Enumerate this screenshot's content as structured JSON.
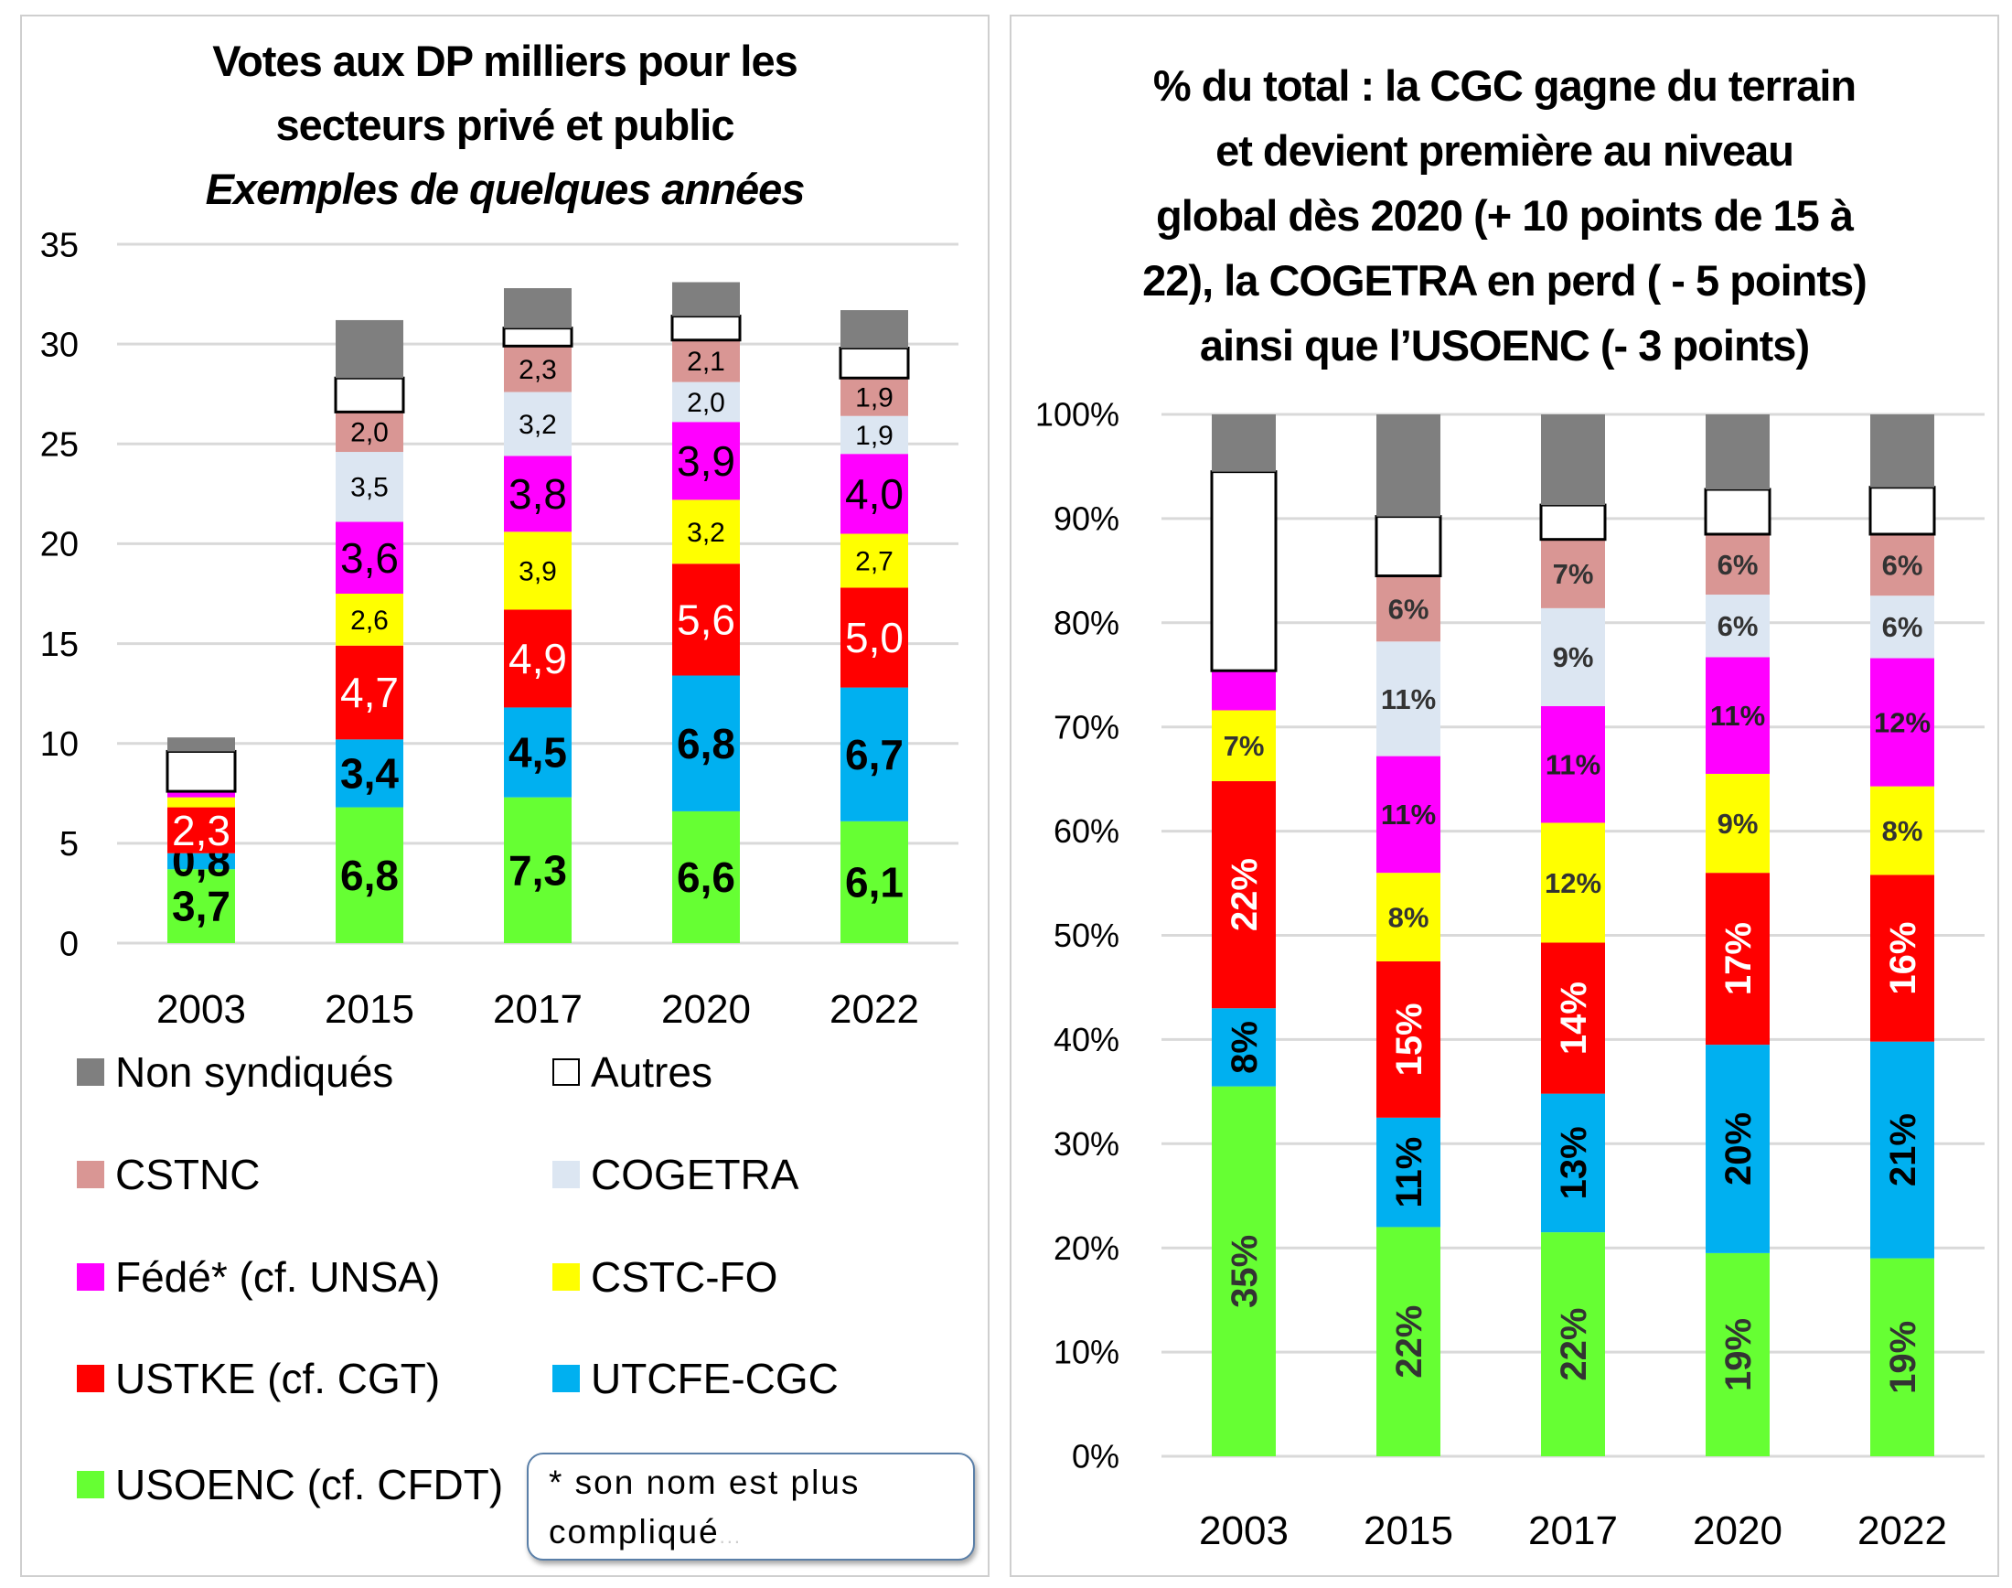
{
  "chart_data": [
    {
      "id": "left",
      "type": "bar",
      "stacked": true,
      "title": "Votes aux DP  milliers pour les secteurs privé et public",
      "subtitle": "Exemples de quelques années",
      "title_lines": [
        "Votes aux DP  milliers pour les",
        "secteurs privé et public"
      ],
      "xlabel": "",
      "ylabel": "",
      "ylim": [
        0,
        35
      ],
      "yticks": [
        0,
        5,
        10,
        15,
        20,
        25,
        30,
        35
      ],
      "ytick_labels": [
        "0",
        "5",
        "10",
        "15",
        "20",
        "25",
        "30",
        "35"
      ],
      "grid": true,
      "categories": [
        "2003",
        "2015",
        "2017",
        "2020",
        "2022"
      ],
      "series": [
        {
          "name": "USOENC (cf. CFDT)",
          "color": "#66ff33",
          "values": [
            3.7,
            6.8,
            7.3,
            6.6,
            6.1
          ],
          "labels": [
            "3,7",
            "6,8",
            "7,3",
            "6,6",
            "6,1"
          ],
          "label_color": "#000000",
          "label_bold": true
        },
        {
          "name": "UTCFE-CGC",
          "color": "#00b0f0",
          "values": [
            0.8,
            3.4,
            4.5,
            6.8,
            6.7
          ],
          "labels": [
            "0,8",
            "3,4",
            "4,5",
            "6,8",
            "6,7"
          ],
          "label_color": "#000000",
          "label_bold": true
        },
        {
          "name": "USTKE (cf. CGT)",
          "color": "#ff0000",
          "values": [
            2.3,
            4.7,
            4.9,
            5.6,
            5.0
          ],
          "labels": [
            "2,3",
            "4,7",
            "4,9",
            "5,6",
            "5,0"
          ],
          "label_color": "#ffffff",
          "label_bold": false
        },
        {
          "name": "CSTC-FO",
          "color": "#ffff00",
          "values": [
            0.5,
            2.6,
            3.9,
            3.2,
            2.7
          ],
          "labels": [
            "",
            "2,6",
            "3,9",
            "3,2",
            "2,7"
          ],
          "label_color": "#000000",
          "label_bold": false
        },
        {
          "name": "Fédé* (cf. UNSA)",
          "color": "#ff00ff",
          "values": [
            0.3,
            3.6,
            3.8,
            3.9,
            4.0
          ],
          "labels": [
            "",
            "3,6",
            "3,8",
            "3,9",
            "4,0"
          ],
          "label_color": "#000000",
          "label_bold": false
        },
        {
          "name": "COGETRA",
          "color": "#dce6f2",
          "values": [
            0,
            3.5,
            3.2,
            2.0,
            1.9
          ],
          "labels": [
            "",
            "3,5",
            "3,2",
            "2,0",
            "1,9"
          ],
          "label_color": "#000000",
          "label_bold": false
        },
        {
          "name": "CSTNC",
          "color": "#d99694",
          "values": [
            0,
            2.0,
            2.3,
            2.1,
            1.9
          ],
          "labels": [
            "",
            "2,0",
            "2,3",
            "2,1",
            "1,9"
          ],
          "label_color": "#000000",
          "label_bold": false
        },
        {
          "name": "Autres",
          "color": "#ffffff",
          "outline": true,
          "values": [
            2.0,
            1.7,
            0.9,
            1.2,
            1.5
          ],
          "labels": [
            "",
            "",
            "",
            "",
            ""
          ]
        },
        {
          "name": "Non syndiqués",
          "color": "#7f7f7f",
          "values": [
            0.7,
            2.9,
            2.0,
            1.7,
            1.9
          ],
          "labels": [
            "",
            "",
            "",
            "",
            ""
          ]
        }
      ],
      "legend": {
        "placement": "bottom",
        "items": [
          {
            "name": "Non syndiqués",
            "color": "#7f7f7f"
          },
          {
            "name": "Autres",
            "color": "#ffffff",
            "outline": true
          },
          {
            "name": "CSTNC",
            "color": "#d99694"
          },
          {
            "name": "COGETRA",
            "color": "#dce6f2"
          },
          {
            "name": "Fédé* (cf. UNSA)",
            "color": "#ff00ff"
          },
          {
            "name": "CSTC-FO",
            "color": "#ffff00"
          },
          {
            "name": "USTKE (cf. CGT)",
            "color": "#ff0000"
          },
          {
            "name": "UTCFE-CGC",
            "color": "#00b0f0"
          },
          {
            "name": "USOENC (cf. CFDT)",
            "color": "#66ff33"
          }
        ]
      },
      "annotation": {
        "line1": "*  son   nom  est  plus",
        "line2": "compliqué",
        "ellipsis": "..."
      }
    },
    {
      "id": "right",
      "type": "bar",
      "stacked": true,
      "title": "% du total : la CGC gagne du terrain et devient première au niveau global dès 2020 (+ 10 points de 15 à 22), la COGETRA en perd ( - 5 points) ainsi que l’USOENC (- 3 points)",
      "title_lines": [
        "% du total : la CGC gagne du terrain",
        "et devient première au niveau",
        "global dès 2020 (+ 10 points de 15 à",
        "22), la COGETRA en perd ( - 5 points)",
        "ainsi que l’USOENC (- 3 points)"
      ],
      "xlabel": "",
      "ylabel": "",
      "ylim": [
        0,
        100
      ],
      "yticks": [
        0,
        10,
        20,
        30,
        40,
        50,
        60,
        70,
        80,
        90,
        100
      ],
      "ytick_labels": [
        "0%",
        "10%",
        "20%",
        "30%",
        "40%",
        "50%",
        "60%",
        "70%",
        "80%",
        "90%",
        "100%"
      ],
      "grid": true,
      "categories": [
        "2003",
        "2015",
        "2017",
        "2020",
        "2022"
      ],
      "series": [
        {
          "name": "USOENC (cf. CFDT)",
          "color": "#66ff33",
          "values": [
            35.5,
            22,
            21.5,
            19.5,
            19
          ],
          "labels": [
            "35%",
            "22%",
            "22%",
            "19%",
            "19%"
          ],
          "label_color": "#333333",
          "rotated": true
        },
        {
          "name": "UTCFE-CGC",
          "color": "#00b0f0",
          "values": [
            7.5,
            10.5,
            13.3,
            20,
            20.8
          ],
          "labels": [
            "8%",
            "11%",
            "13%",
            "20%",
            "21%"
          ],
          "label_color": "#000000",
          "rotated": true
        },
        {
          "name": "USTKE (cf. CGT)",
          "color": "#ff0000",
          "values": [
            21.8,
            15,
            14.5,
            16.5,
            16
          ],
          "labels": [
            "22%",
            "15%",
            "14%",
            "17%",
            "16%"
          ],
          "label_color": "#ffffff",
          "rotated": true
        },
        {
          "name": "CSTC-FO",
          "color": "#ffff00",
          "values": [
            6.8,
            8.5,
            11.5,
            9.5,
            8.5
          ],
          "labels": [
            "7%",
            "8%",
            "12%",
            "9%",
            "8%"
          ],
          "label_color": "#333333"
        },
        {
          "name": "Fédé* (cf. UNSA)",
          "color": "#ff00ff",
          "values": [
            3.8,
            11.2,
            11.2,
            11.2,
            12.3
          ],
          "labels": [
            "",
            "11%",
            "11%",
            "11%",
            "12%"
          ],
          "label_color": "#222222"
        },
        {
          "name": "COGETRA",
          "color": "#dce6f2",
          "values": [
            0,
            11,
            9.4,
            6,
            6
          ],
          "labels": [
            "",
            "11%",
            "9%",
            "6%",
            "6%"
          ],
          "label_color": "#333333"
        },
        {
          "name": "CSTNC",
          "color": "#d99694",
          "values": [
            0,
            6.3,
            6.6,
            5.8,
            5.9
          ],
          "labels": [
            "",
            "6%",
            "7%",
            "6%",
            "6%"
          ],
          "label_color": "#333333"
        },
        {
          "name": "Autres",
          "color": "#ffffff",
          "outline": true,
          "values": [
            19.1,
            5.7,
            3.3,
            4.3,
            4.5
          ],
          "labels": [
            "",
            "",
            "",
            "",
            ""
          ]
        },
        {
          "name": "Non syndiqués",
          "color": "#7f7f7f",
          "values": [
            5.5,
            9.8,
            8.7,
            7.2,
            7
          ]
        }
      ]
    }
  ]
}
